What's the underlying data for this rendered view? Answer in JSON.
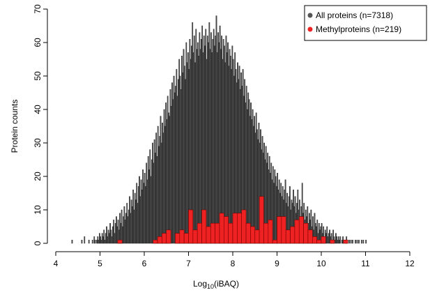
{
  "chart_data": {
    "type": "histogram",
    "xlabel_parts": [
      "Log",
      "10",
      "(iBAQ)"
    ],
    "ylabel": "Protein counts",
    "xlim": [
      4,
      12
    ],
    "ylim": [
      0,
      70
    ],
    "xticks": [
      4,
      5,
      6,
      7,
      8,
      9,
      10,
      11,
      12
    ],
    "yticks": [
      0,
      10,
      20,
      30,
      40,
      50,
      60,
      70
    ],
    "legend": "top-right",
    "series": [
      {
        "name": "All proteins (n=7318)",
        "color": "#555555",
        "bins": [
          4,
          4.02,
          4.04,
          4.06,
          4.08,
          4.1,
          4.12,
          4.14,
          4.16,
          4.18,
          4.2,
          4.22,
          4.24,
          4.26,
          4.28,
          4.3,
          4.32,
          4.34,
          4.36,
          4.38,
          4.4,
          4.42,
          4.44,
          4.46,
          4.48,
          4.5,
          4.52,
          4.54,
          4.56,
          4.58,
          4.6,
          4.62,
          4.64,
          4.66,
          4.68,
          4.7,
          4.72,
          4.74,
          4.76,
          4.78,
          4.8,
          4.82,
          4.84,
          4.86,
          4.88,
          4.9,
          4.92,
          4.94,
          4.96,
          4.98,
          5,
          5.02,
          5.04,
          5.06,
          5.08,
          5.1,
          5.12,
          5.14,
          5.16,
          5.18,
          5.2,
          5.22,
          5.24,
          5.26,
          5.28,
          5.3,
          5.32,
          5.34,
          5.36,
          5.38,
          5.4,
          5.42,
          5.44,
          5.46,
          5.48,
          5.5,
          5.52,
          5.54,
          5.56,
          5.58,
          5.6,
          5.62,
          5.64,
          5.66,
          5.68,
          5.7,
          5.72,
          5.74,
          5.76,
          5.78,
          5.8,
          5.82,
          5.84,
          5.86,
          5.88,
          5.9,
          5.92,
          5.94,
          5.96,
          5.98,
          6,
          6.02,
          6.04,
          6.06,
          6.08,
          6.1,
          6.12,
          6.14,
          6.16,
          6.18,
          6.2,
          6.22,
          6.24,
          6.26,
          6.28,
          6.3,
          6.32,
          6.34,
          6.36,
          6.38,
          6.4,
          6.42,
          6.44,
          6.46,
          6.48,
          6.5,
          6.52,
          6.54,
          6.56,
          6.58,
          6.6,
          6.62,
          6.64,
          6.66,
          6.68,
          6.7,
          6.72,
          6.74,
          6.76,
          6.78,
          6.8,
          6.82,
          6.84,
          6.86,
          6.88,
          6.9,
          6.92,
          6.94,
          6.96,
          6.98,
          7,
          7.02,
          7.04,
          7.06,
          7.08,
          7.1,
          7.12,
          7.14,
          7.16,
          7.18,
          7.2,
          7.22,
          7.24,
          7.26,
          7.28,
          7.3,
          7.32,
          7.34,
          7.36,
          7.38,
          7.4,
          7.42,
          7.44,
          7.46,
          7.48,
          7.5,
          7.52,
          7.54,
          7.56,
          7.58,
          7.6,
          7.62,
          7.64,
          7.66,
          7.68,
          7.7,
          7.72,
          7.74,
          7.76,
          7.78,
          7.8,
          7.82,
          7.84,
          7.86,
          7.88,
          7.9,
          7.92,
          7.94,
          7.96,
          7.98,
          8,
          8.02,
          8.04,
          8.06,
          8.08,
          8.1,
          8.12,
          8.14,
          8.16,
          8.18,
          8.2,
          8.22,
          8.24,
          8.26,
          8.28,
          8.3,
          8.32,
          8.34,
          8.36,
          8.38,
          8.4,
          8.42,
          8.44,
          8.46,
          8.48,
          8.5,
          8.52,
          8.54,
          8.56,
          8.58,
          8.6,
          8.62,
          8.64,
          8.66,
          8.68,
          8.7,
          8.72,
          8.74,
          8.76,
          8.78,
          8.8,
          8.82,
          8.84,
          8.86,
          8.88,
          8.9,
          8.92,
          8.94,
          8.96,
          8.98,
          9,
          9.02,
          9.04,
          9.06,
          9.08,
          9.1,
          9.12,
          9.14,
          9.16,
          9.18,
          9.2,
          9.22,
          9.24,
          9.26,
          9.28,
          9.3,
          9.32,
          9.34,
          9.36,
          9.38,
          9.4,
          9.42,
          9.44,
          9.46,
          9.48,
          9.5,
          9.52,
          9.54,
          9.56,
          9.58,
          9.6,
          9.62,
          9.64,
          9.66,
          9.68,
          9.7,
          9.72,
          9.74,
          9.76,
          9.78,
          9.8,
          9.82,
          9.84,
          9.86,
          9.88,
          9.9,
          9.92,
          9.94,
          9.96,
          9.98,
          10,
          10.02,
          10.04,
          10.06,
          10.08,
          10.1,
          10.12,
          10.14,
          10.16,
          10.18,
          10.2,
          10.22,
          10.24,
          10.26,
          10.28,
          10.3,
          10.32,
          10.34,
          10.36,
          10.38,
          10.4,
          10.42,
          10.44,
          10.46,
          10.48,
          10.5,
          10.52,
          10.54,
          10.56,
          10.58,
          10.6,
          10.62,
          10.64,
          10.66,
          10.68,
          10.7,
          10.72,
          10.74,
          10.76,
          10.78,
          10.8,
          10.82,
          10.84,
          10.86,
          10.88,
          10.9,
          10.92,
          10.94,
          10.96,
          10.98,
          11,
          11.02,
          11.04,
          11.06,
          11.08,
          11.1,
          11.12,
          11.14,
          11.16,
          11.18,
          11.2,
          11.22,
          11.24,
          11.26,
          11.28,
          11.3,
          11.32,
          11.34,
          11.36,
          11.38,
          11.4,
          11.42,
          11.44,
          11.46,
          11.48,
          11.5,
          11.52,
          11.54,
          11.56,
          11.58,
          11.6,
          11.62,
          11.64,
          11.66,
          11.68,
          11.7,
          11.72,
          11.74,
          11.76,
          11.78,
          11.8,
          11.82,
          11.84,
          11.86,
          11.88,
          11.9,
          11.92,
          11.94,
          11.96,
          11.98,
          12
        ],
        "values": [
          0,
          0,
          0,
          0,
          0,
          0,
          0,
          0,
          0,
          0,
          0,
          0,
          0,
          0,
          0,
          0,
          0,
          0,
          1,
          0,
          0,
          0,
          0,
          0,
          0,
          0,
          0,
          0,
          0,
          1,
          0,
          0,
          2,
          0,
          0,
          0,
          0,
          1,
          0,
          0,
          0,
          1,
          0,
          2,
          1,
          0,
          1,
          2,
          1,
          3,
          2,
          1,
          3,
          2,
          4,
          1,
          3,
          5,
          2,
          4,
          3,
          6,
          4,
          2,
          5,
          7,
          3,
          6,
          8,
          5,
          7,
          4,
          9,
          6,
          10,
          5,
          8,
          11,
          7,
          9,
          12,
          8,
          10,
          14,
          9,
          13,
          11,
          16,
          10,
          15,
          13,
          18,
          12,
          17,
          20,
          14,
          19,
          16,
          22,
          18,
          21,
          17,
          24,
          19,
          26,
          22,
          28,
          20,
          25,
          30,
          24,
          31,
          27,
          33,
          26,
          35,
          29,
          32,
          38,
          30,
          36,
          33,
          40,
          35,
          42,
          37,
          44,
          39,
          38,
          46,
          41,
          48,
          43,
          50,
          45,
          47,
          52,
          44,
          49,
          55,
          50,
          46,
          56,
          51,
          58,
          53,
          49,
          60,
          54,
          57,
          52,
          61,
          55,
          59,
          66,
          57,
          62,
          54,
          64,
          58,
          60,
          56,
          63,
          58,
          61,
          65,
          57,
          62,
          59,
          64,
          55,
          62,
          60,
          66,
          58,
          63,
          57,
          61,
          64,
          59,
          62,
          68,
          57,
          63,
          60,
          65,
          58,
          62,
          55,
          61,
          59,
          54,
          62,
          57,
          60,
          53,
          58,
          56,
          52,
          59,
          55,
          50,
          57,
          52,
          48,
          54,
          49,
          53,
          46,
          51,
          47,
          52,
          44,
          49,
          42,
          47,
          40,
          45,
          43,
          38,
          42,
          37,
          40,
          35,
          38,
          33,
          39,
          34,
          31,
          36,
          30,
          34,
          28,
          32,
          27,
          30,
          25,
          29,
          24,
          27,
          22,
          26,
          21,
          24,
          19,
          23,
          18,
          22,
          20,
          17,
          21,
          16,
          19,
          15,
          18,
          14,
          17,
          13,
          16,
          19,
          12,
          15,
          11,
          14,
          17,
          10,
          13,
          12,
          16,
          11,
          14,
          9,
          12,
          16,
          10,
          13,
          8,
          11,
          18,
          9,
          12,
          7,
          10,
          8,
          11,
          6,
          9,
          7,
          10,
          5,
          8,
          4,
          9,
          6,
          5,
          7,
          3,
          6,
          4,
          5,
          6,
          3,
          5,
          2,
          4,
          3,
          5,
          2,
          3,
          4,
          2,
          3,
          1,
          4,
          2,
          1,
          3,
          2,
          1,
          2,
          1,
          2,
          0,
          1,
          2,
          1,
          0,
          1,
          2,
          1,
          0,
          1,
          0,
          1,
          0,
          1,
          0,
          0,
          1,
          0,
          1,
          0,
          1,
          0,
          0,
          1,
          0,
          1,
          0,
          0,
          1,
          0,
          0,
          0,
          0,
          0,
          0,
          0,
          0,
          0,
          0,
          0,
          0,
          0,
          0,
          0,
          0,
          0,
          0,
          0,
          0,
          0,
          0,
          0,
          0,
          0,
          0,
          0,
          0,
          0,
          0,
          0,
          0,
          0,
          0,
          0,
          0,
          0,
          0,
          0,
          0,
          0,
          0,
          0,
          0,
          0,
          0,
          0,
          0,
          0
        ]
      },
      {
        "name": "Methylproteins (n=219)",
        "color": "#ee2222",
        "bins": [
          4,
          4.1,
          4.2,
          4.3,
          4.4,
          4.5,
          4.6,
          4.7,
          4.8,
          4.9,
          5,
          5.1,
          5.2,
          5.3,
          5.4,
          5.5,
          5.6,
          5.7,
          5.8,
          5.9,
          6,
          6.1,
          6.2,
          6.3,
          6.4,
          6.5,
          6.6,
          6.7,
          6.8,
          6.9,
          7,
          7.1,
          7.2,
          7.3,
          7.4,
          7.5,
          7.6,
          7.7,
          7.8,
          7.9,
          8,
          8.1,
          8.2,
          8.3,
          8.4,
          8.5,
          8.6,
          8.7,
          8.8,
          8.9,
          9,
          9.1,
          9.2,
          9.3,
          9.4,
          9.5,
          9.6,
          9.7,
          9.8,
          9.9,
          10,
          10.1,
          10.2,
          10.3,
          10.4,
          10.5,
          10.6,
          10.7,
          10.8,
          10.9,
          11,
          11.1,
          11.2,
          11.3,
          11.4,
          11.5,
          11.6,
          11.7,
          11.8,
          11.9,
          12
        ],
        "values": [
          0,
          0,
          0,
          0,
          0,
          0,
          0,
          0,
          0,
          0,
          0,
          0,
          0,
          0,
          1,
          0,
          0,
          0,
          0,
          0,
          0,
          0,
          1,
          2,
          3,
          4,
          0,
          3,
          4,
          3,
          10,
          4,
          6,
          10,
          5,
          6,
          6,
          9,
          8,
          6,
          9,
          9,
          10,
          6,
          5,
          4,
          14,
          6,
          7,
          1,
          8,
          8,
          4,
          5,
          7,
          8,
          6,
          4,
          2,
          1,
          2,
          0,
          1,
          0,
          0,
          1,
          0,
          0,
          0,
          0,
          0,
          0,
          0,
          0,
          0,
          0,
          0,
          0,
          0,
          0
        ]
      }
    ]
  }
}
